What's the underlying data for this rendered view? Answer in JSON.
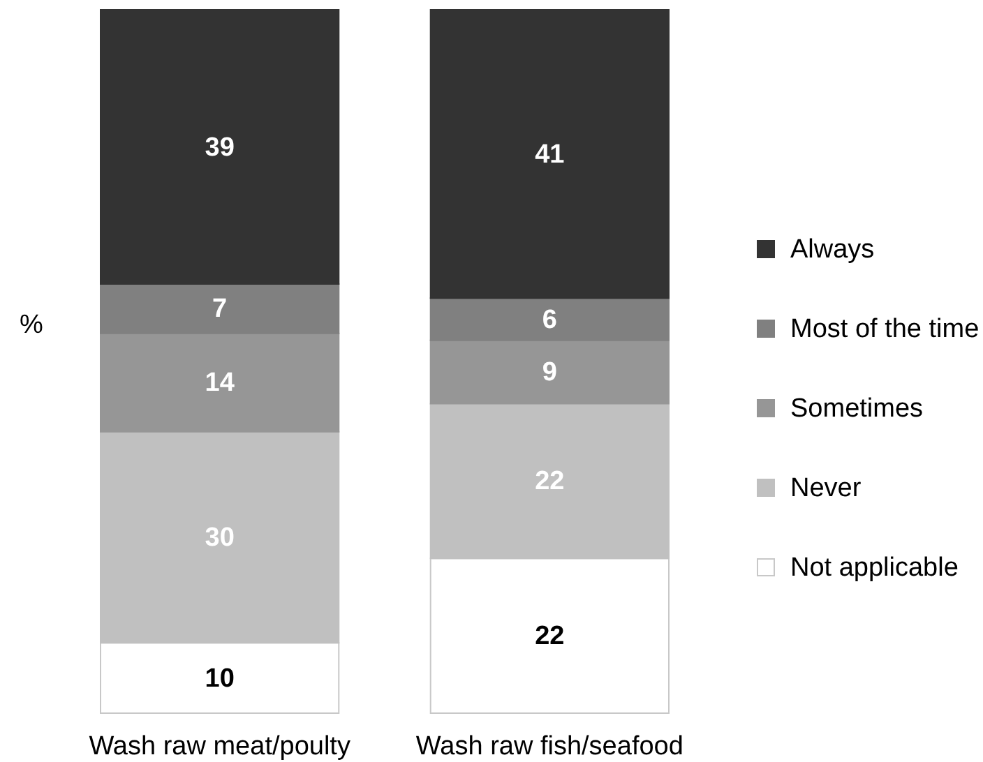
{
  "chart_data": {
    "type": "bar",
    "stacked": true,
    "ylabel": "%",
    "categories": [
      "Wash raw meat/poulty",
      "Wash raw fish/seafood"
    ],
    "series": [
      {
        "name": "Not applicable",
        "color": "#ffffff",
        "values": [
          10,
          22
        ]
      },
      {
        "name": "Never",
        "color": "#c0c0c0",
        "values": [
          30,
          22
        ]
      },
      {
        "name": "Sometimes",
        "color": "#969696",
        "values": [
          14,
          9
        ]
      },
      {
        "name": "Most of the time",
        "color": "#808080",
        "values": [
          7,
          6
        ]
      },
      {
        "name": "Always",
        "color": "#333333",
        "values": [
          39,
          41
        ]
      }
    ],
    "ylim": [
      0,
      100
    ],
    "data_labels": true,
    "legend": "right",
    "tick_labels": "x"
  }
}
